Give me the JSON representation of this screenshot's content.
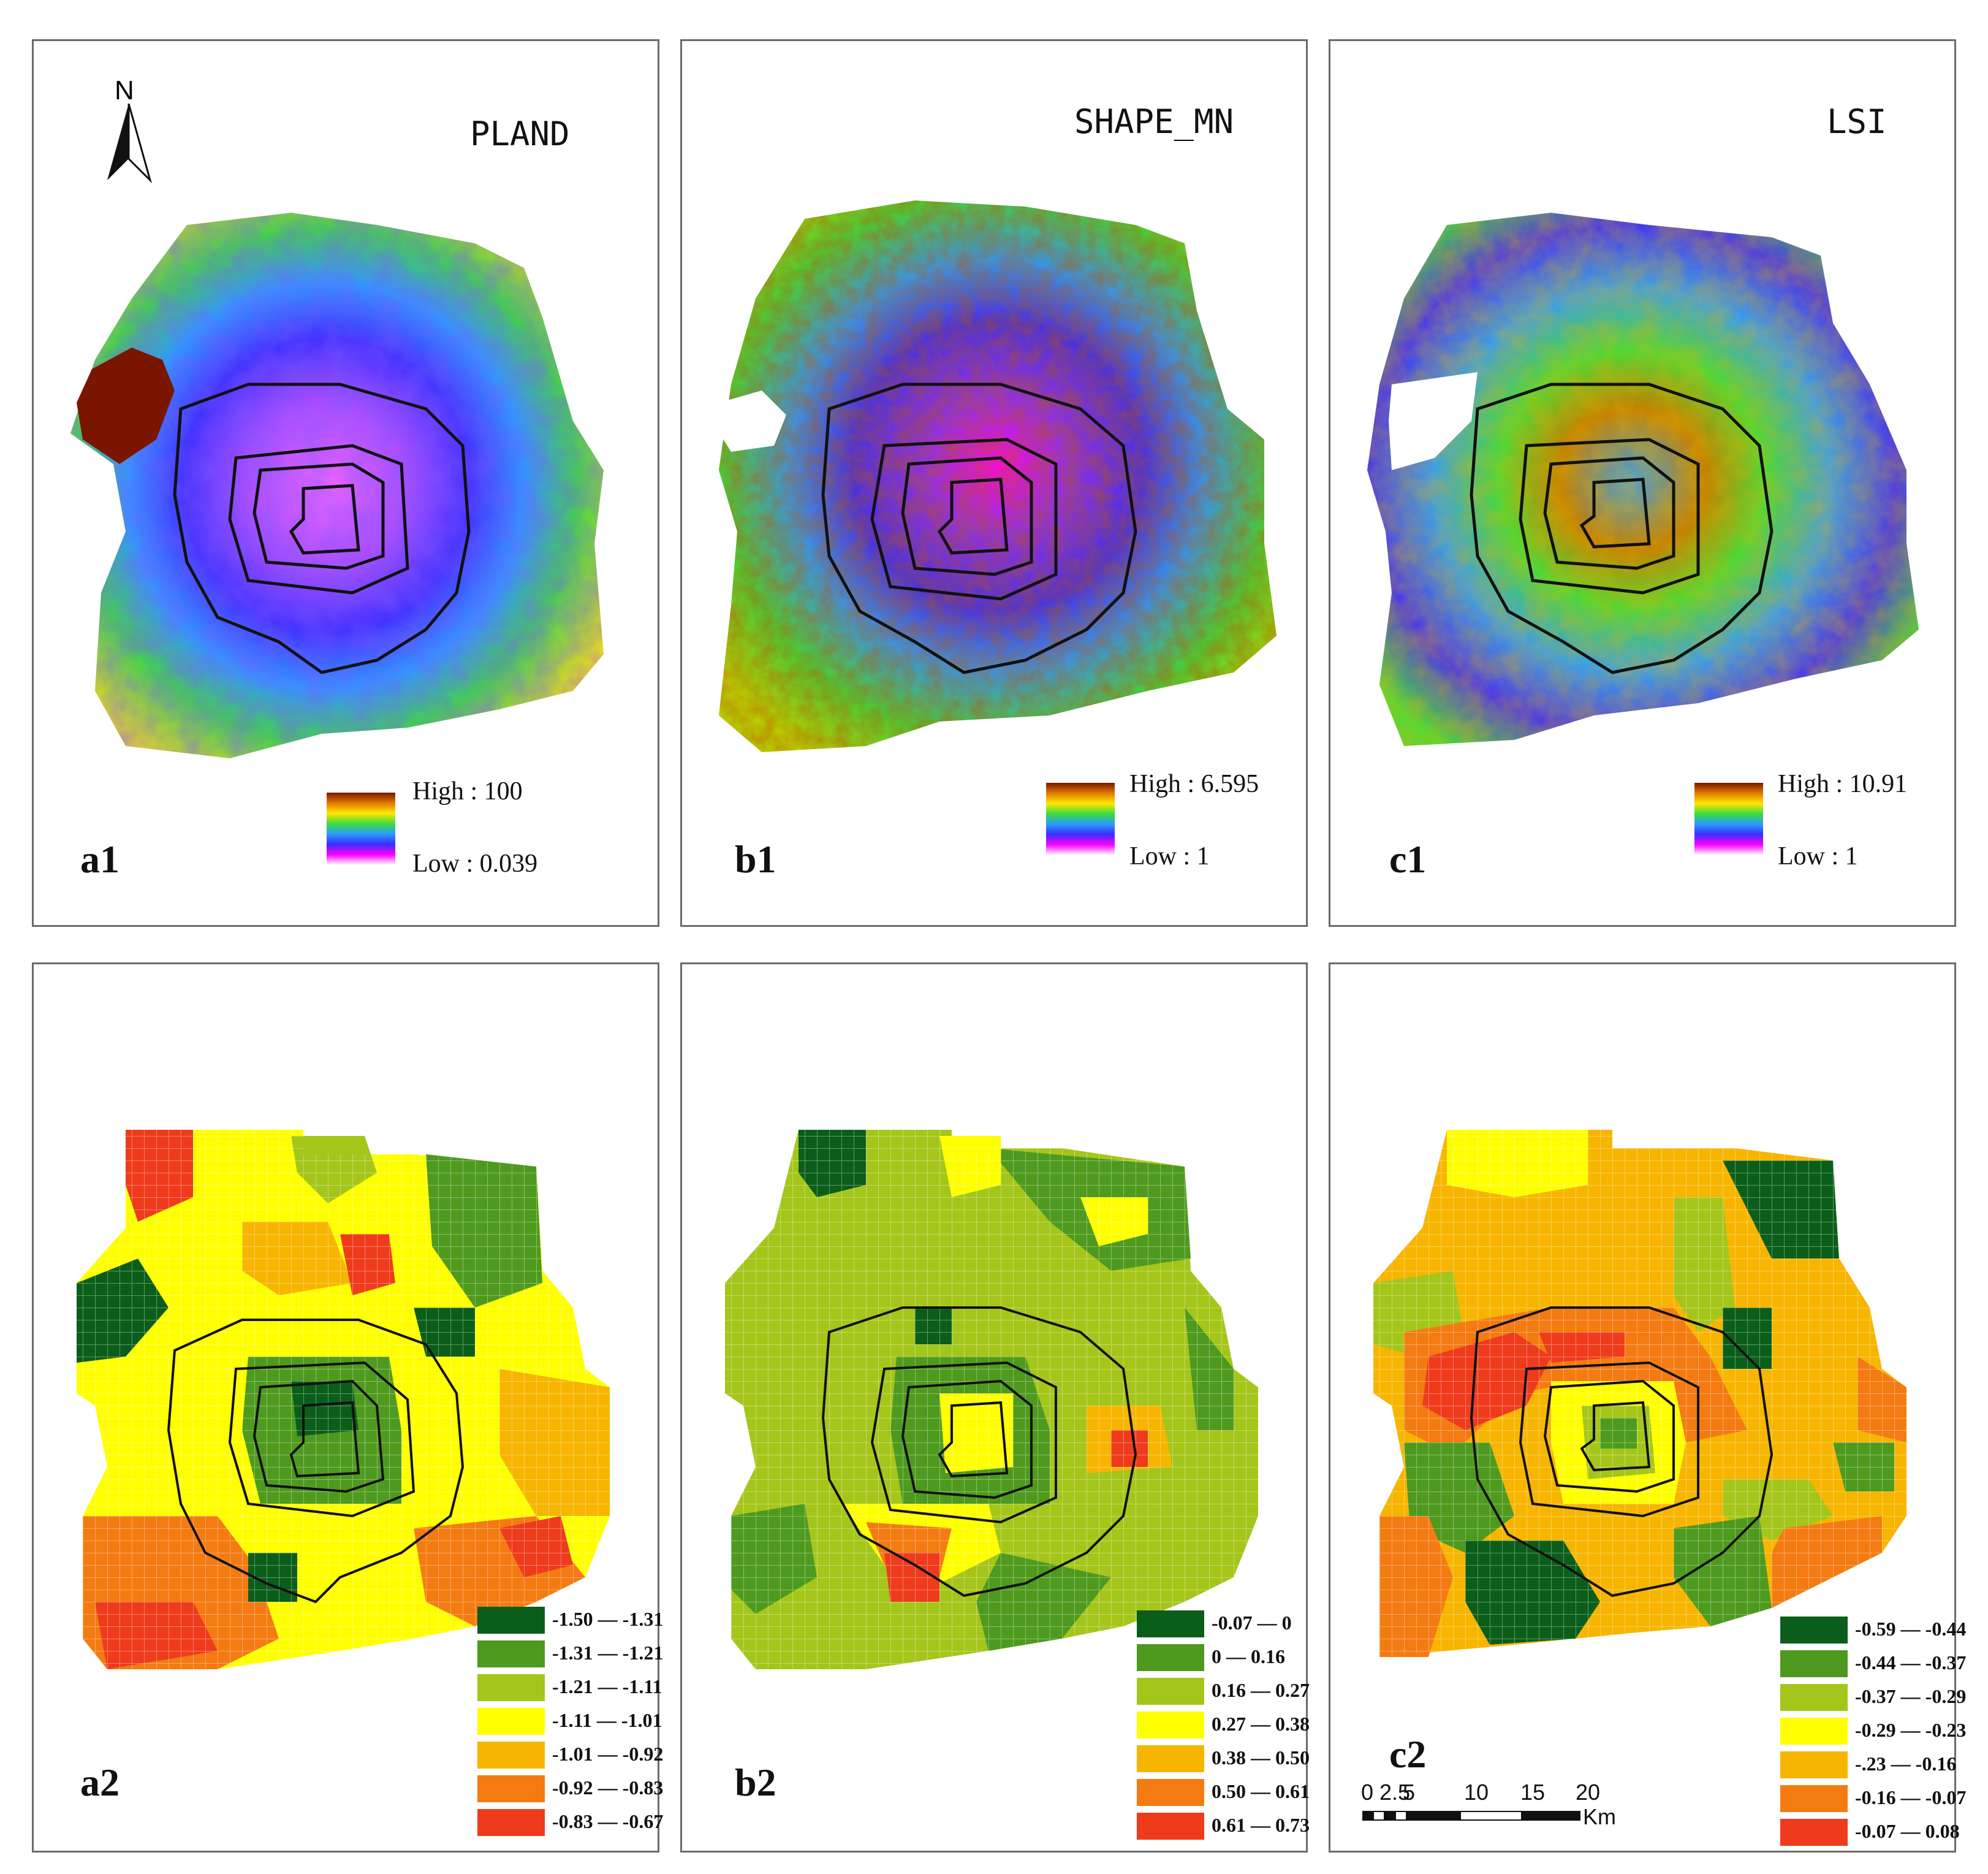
{
  "panels_top": [
    {
      "id": "a1",
      "label": "a1",
      "metric": "PLAND",
      "legend_high": "High : 100",
      "legend_low": "Low : 0.039"
    },
    {
      "id": "b1",
      "label": "b1",
      "metric": "SHAPE_MN",
      "legend_high": "High : 6.595",
      "legend_low": "Low : 1"
    },
    {
      "id": "c1",
      "label": "c1",
      "metric": "LSI",
      "legend_high": "High : 10.91",
      "legend_low": "Low : 1"
    }
  ],
  "panels_bottom": [
    {
      "id": "a2",
      "label": "a2",
      "classes": [
        "-1.50 — -1.31",
        "-1.31 — -1.21",
        "-1.21 — -1.11",
        "-1.11 — -1.01",
        "-1.01 — -0.92",
        "-0.92 — -0.83",
        "-0.83 — -0.67"
      ]
    },
    {
      "id": "b2",
      "label": "b2",
      "classes": [
        "-0.07 — 0",
        "0 — 0.16",
        "0.16 — 0.27",
        "0.27 — 0.38",
        "0.38 — 0.50",
        "0.50 — 0.61",
        "0.61 — 0.73"
      ]
    },
    {
      "id": "c2",
      "label": "c2",
      "classes": [
        "-0.59 — -0.44",
        "-0.44 — -0.37",
        "-0.37 — -0.29",
        "-0.29 — -0.23",
        "-.23 — -0.16",
        "-0.16 — -0.07",
        "-0.07 — 0.08"
      ]
    }
  ],
  "class_colors": [
    "#0b5e1a",
    "#4e9a1e",
    "#a4c61a",
    "#ffff00",
    "#f7b500",
    "#f47b12",
    "#ee3b1c"
  ],
  "ramp_colors": [
    "#7a1600",
    "#e07a00",
    "#ffe800",
    "#3cdc3c",
    "#2a9cff",
    "#3a2cff",
    "#ff00ff",
    "#ffffff"
  ],
  "north": {
    "label": "N"
  },
  "scale": {
    "ticks": [
      "0",
      "2.5",
      "5",
      "10",
      "15",
      "20"
    ],
    "unit": "Km"
  }
}
